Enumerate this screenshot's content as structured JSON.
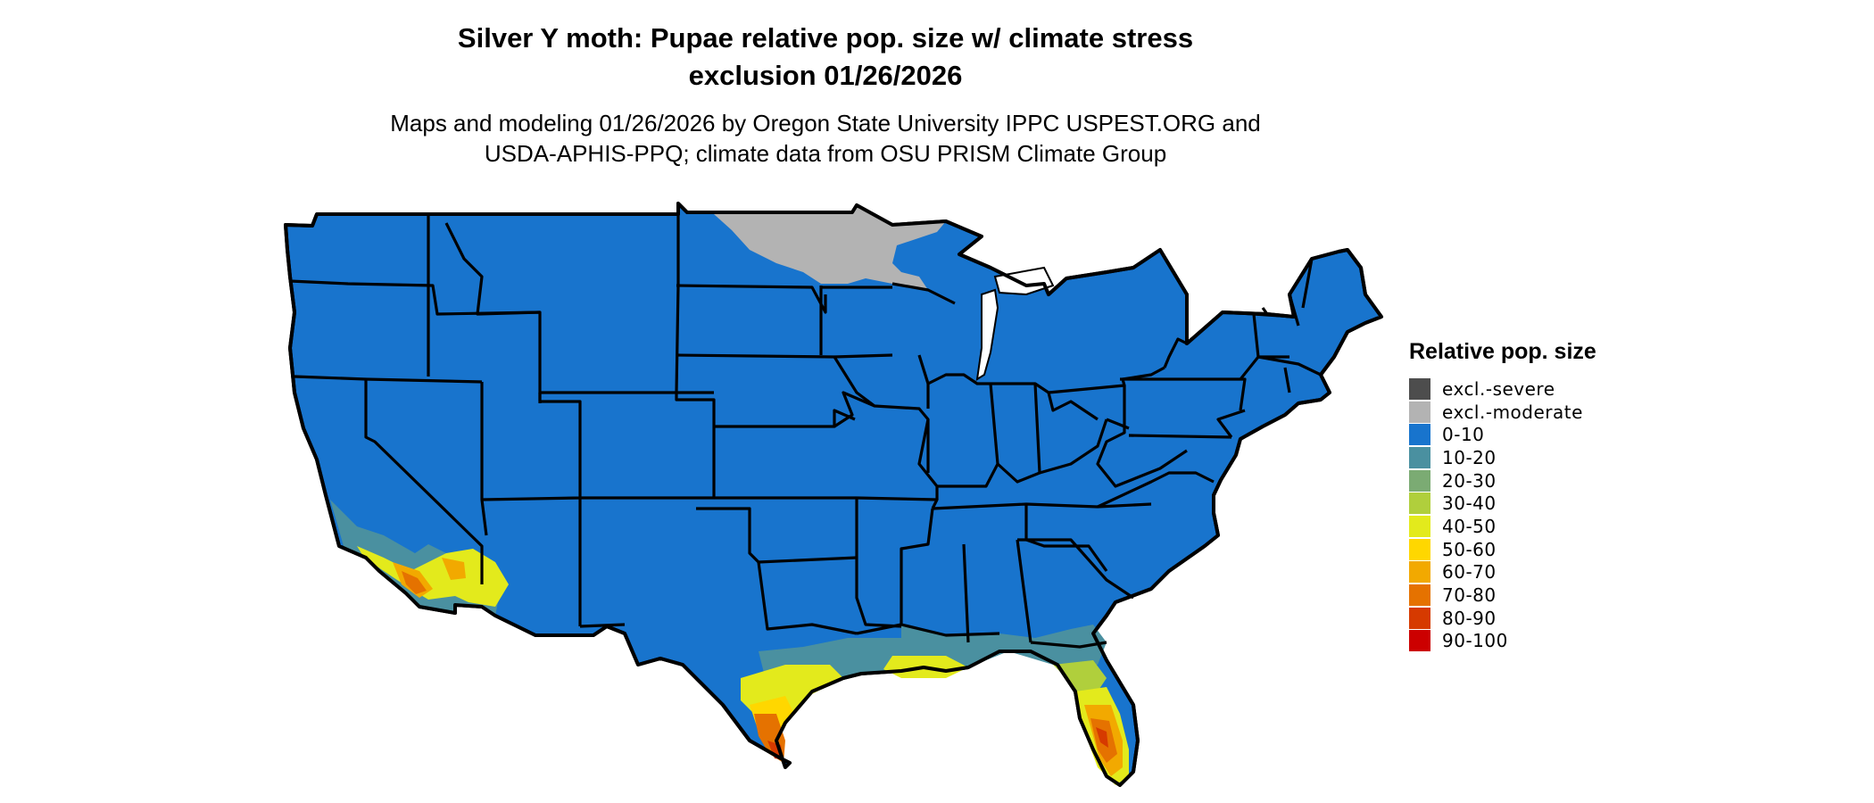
{
  "title_line1": "Silver Y moth: Pupae relative pop. size w/ climate stress",
  "title_line2": "exclusion 01/26/2026",
  "subtitle_line1": "Maps and modeling 01/26/2026 by Oregon State University IPPC USPEST.ORG and",
  "subtitle_line2": "USDA-APHIS-PPQ; climate data from OSU PRISM Climate Group",
  "legend": {
    "title": "Relative pop. size",
    "items": [
      {
        "label": "excl.-severe",
        "color": "#4d4d4d"
      },
      {
        "label": "excl.-moderate",
        "color": "#b3b3b3"
      },
      {
        "label": "0-10",
        "color": "#1874cd"
      },
      {
        "label": "10-20",
        "color": "#4a90a0"
      },
      {
        "label": "20-30",
        "color": "#7bab73"
      },
      {
        "label": "30-40",
        "color": "#b0cf3c"
      },
      {
        "label": "40-50",
        "color": "#e3ea1c"
      },
      {
        "label": "50-60",
        "color": "#ffd700"
      },
      {
        "label": "60-70",
        "color": "#f2a900"
      },
      {
        "label": "70-80",
        "color": "#e57200"
      },
      {
        "label": "80-90",
        "color": "#d63a00"
      },
      {
        "label": "90-100",
        "color": "#cc0000"
      }
    ]
  },
  "map": {
    "base_color": "#1874cd",
    "outline_color": "#000000"
  }
}
